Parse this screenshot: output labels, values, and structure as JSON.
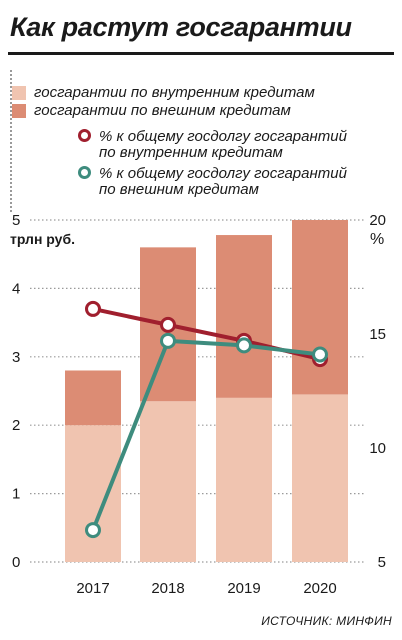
{
  "title": "Как растут госгарантии",
  "legend": {
    "domestic": "госгарантии по внутренним кредитам",
    "external": "госгарантии по внешним кредитам",
    "share_domestic_1": "% к общему госдолгу госгарантий",
    "share_domestic_2": "по внутренним кредитам",
    "share_external_1": "%  к общему госдолгу госгарантий",
    "share_external_2": "по внешним кредитам"
  },
  "axes": {
    "left_unit": "трлн руб.",
    "right_unit": "%"
  },
  "source": "ИСТОЧНИК: МИНФИН",
  "colors": {
    "domestic": "#f0c4b0",
    "external": "#dc8c74",
    "share_domestic": "#a01f2e",
    "share_external": "#3e8c7e",
    "grid": "#9a9a9a"
  },
  "chart_data": {
    "type": "bar",
    "categories": [
      "2017",
      "2018",
      "2019",
      "2020"
    ],
    "series": [
      {
        "name": "госгарантии по внутренним кредитам",
        "kind": "bar-stacked",
        "axis": "left",
        "values": [
          2.0,
          2.35,
          2.4,
          2.45
        ]
      },
      {
        "name": "госгарантии по внешним кредитам",
        "kind": "bar-stacked",
        "axis": "left",
        "values": [
          0.8,
          2.25,
          2.38,
          2.55
        ]
      },
      {
        "name": "% к общему госдолгу госгарантий по внутренним кредитам",
        "kind": "line",
        "axis": "right",
        "values": [
          16.1,
          15.4,
          14.7,
          13.9
        ]
      },
      {
        "name": "% к общему госдолгу госгарантий по внешним кредитам",
        "kind": "line",
        "axis": "right",
        "values": [
          6.4,
          14.7,
          14.5,
          14.1
        ]
      }
    ],
    "left_axis": {
      "label": "трлн руб.",
      "ylim": [
        0,
        5
      ],
      "ticks": [
        "0",
        "1",
        "2",
        "3",
        "4",
        "5"
      ]
    },
    "right_axis": {
      "label": "%",
      "ylim": [
        5,
        20
      ],
      "ticks": [
        "5",
        "10",
        "15",
        "20"
      ]
    },
    "grid": true,
    "legend_position": "top"
  }
}
